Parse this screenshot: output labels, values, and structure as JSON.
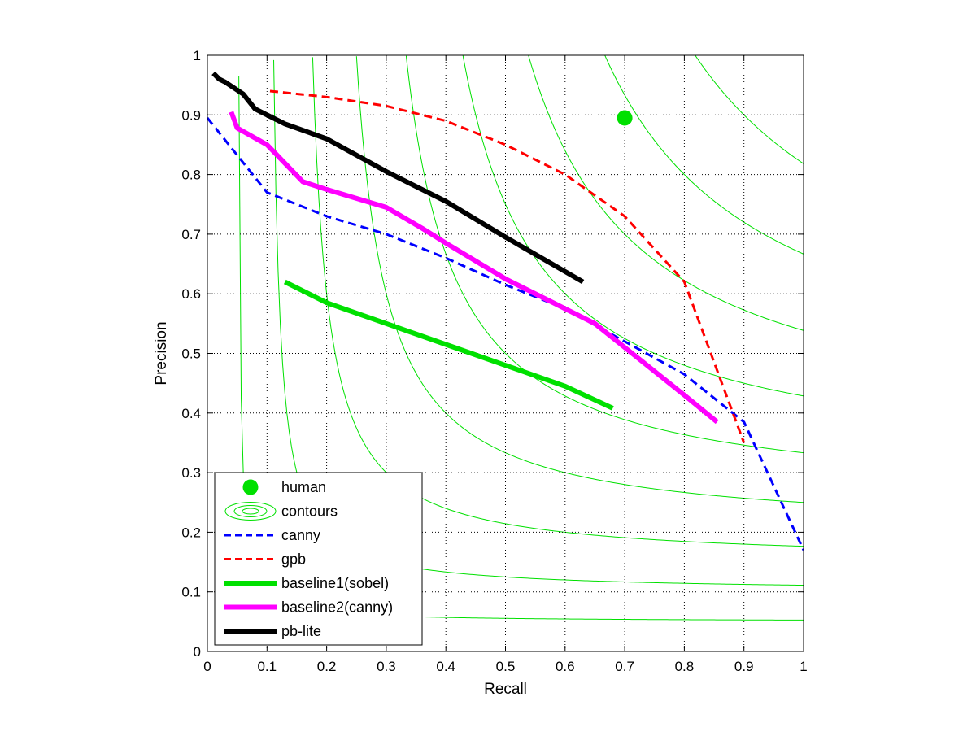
{
  "chart_data": {
    "type": "line",
    "title": "",
    "xlabel": "Recall",
    "ylabel": "Precision",
    "xlim": [
      0,
      1
    ],
    "ylim": [
      0,
      1
    ],
    "grid": true,
    "grid_style": "dotted",
    "x_ticks": [
      0,
      0.1,
      0.2,
      0.3,
      0.4,
      0.5,
      0.6,
      0.7,
      0.8,
      0.9,
      1
    ],
    "y_ticks": [
      0,
      0.1,
      0.2,
      0.3,
      0.4,
      0.5,
      0.6,
      0.7,
      0.8,
      0.9,
      1
    ],
    "x_tick_labels": [
      "0",
      "0.1",
      "0.2",
      "0.3",
      "0.4",
      "0.5",
      "0.6",
      "0.7",
      "0.8",
      "0.9",
      "1"
    ],
    "y_tick_labels": [
      "0",
      "0.1",
      "0.2",
      "0.3",
      "0.4",
      "0.5",
      "0.6",
      "0.7",
      "0.8",
      "0.9",
      "1"
    ],
    "legend_position": "bottom-left",
    "contours": {
      "name": "contours",
      "kind": "iso-F-measure",
      "color": "#00e000",
      "levels": [
        0.1,
        0.2,
        0.3,
        0.4,
        0.5,
        0.6,
        0.7,
        0.8,
        0.9
      ]
    },
    "points": [
      {
        "name": "human",
        "x": 0.7,
        "y": 0.895,
        "color": "#00e000"
      }
    ],
    "series": [
      {
        "name": "canny",
        "color": "#0000ff",
        "dashed": true,
        "weight": "thin",
        "x": [
          0.0,
          0.1,
          0.2,
          0.3,
          0.4,
          0.5,
          0.6,
          0.7,
          0.8,
          0.9,
          1.0
        ],
        "y": [
          0.895,
          0.77,
          0.73,
          0.7,
          0.66,
          0.615,
          0.575,
          0.52,
          0.465,
          0.385,
          0.17
        ]
      },
      {
        "name": "gpb",
        "color": "#ff0000",
        "dashed": true,
        "weight": "thin",
        "x": [
          0.105,
          0.2,
          0.3,
          0.4,
          0.5,
          0.6,
          0.7,
          0.8,
          0.9
        ],
        "y": [
          0.94,
          0.93,
          0.915,
          0.89,
          0.85,
          0.8,
          0.73,
          0.62,
          0.35
        ]
      },
      {
        "name": "baseline1(sobel)",
        "color": "#00e000",
        "dashed": false,
        "weight": "thick",
        "x": [
          0.13,
          0.2,
          0.3,
          0.4,
          0.5,
          0.6,
          0.68
        ],
        "y": [
          0.62,
          0.585,
          0.55,
          0.515,
          0.48,
          0.445,
          0.408
        ]
      },
      {
        "name": "baseline2(canny)",
        "color": "#ff00ff",
        "dashed": false,
        "weight": "thick",
        "x": [
          0.04,
          0.05,
          0.1,
          0.16,
          0.2,
          0.3,
          0.36,
          0.4,
          0.5,
          0.6,
          0.65,
          0.7,
          0.8,
          0.855
        ],
        "y": [
          0.905,
          0.878,
          0.85,
          0.788,
          0.775,
          0.745,
          0.71,
          0.685,
          0.625,
          0.575,
          0.55,
          0.51,
          0.43,
          0.385
        ]
      },
      {
        "name": "pb-lite",
        "color": "#000000",
        "dashed": false,
        "weight": "thick",
        "x": [
          0.01,
          0.02,
          0.03,
          0.06,
          0.08,
          0.1,
          0.13,
          0.2,
          0.3,
          0.4,
          0.5,
          0.63
        ],
        "y": [
          0.97,
          0.96,
          0.955,
          0.935,
          0.91,
          0.9,
          0.885,
          0.86,
          0.805,
          0.755,
          0.695,
          0.62
        ]
      }
    ],
    "legend_entries": [
      "human",
      "contours",
      "canny",
      "gpb",
      "baseline1(sobel)",
      "baseline2(canny)",
      "pb-lite"
    ]
  }
}
